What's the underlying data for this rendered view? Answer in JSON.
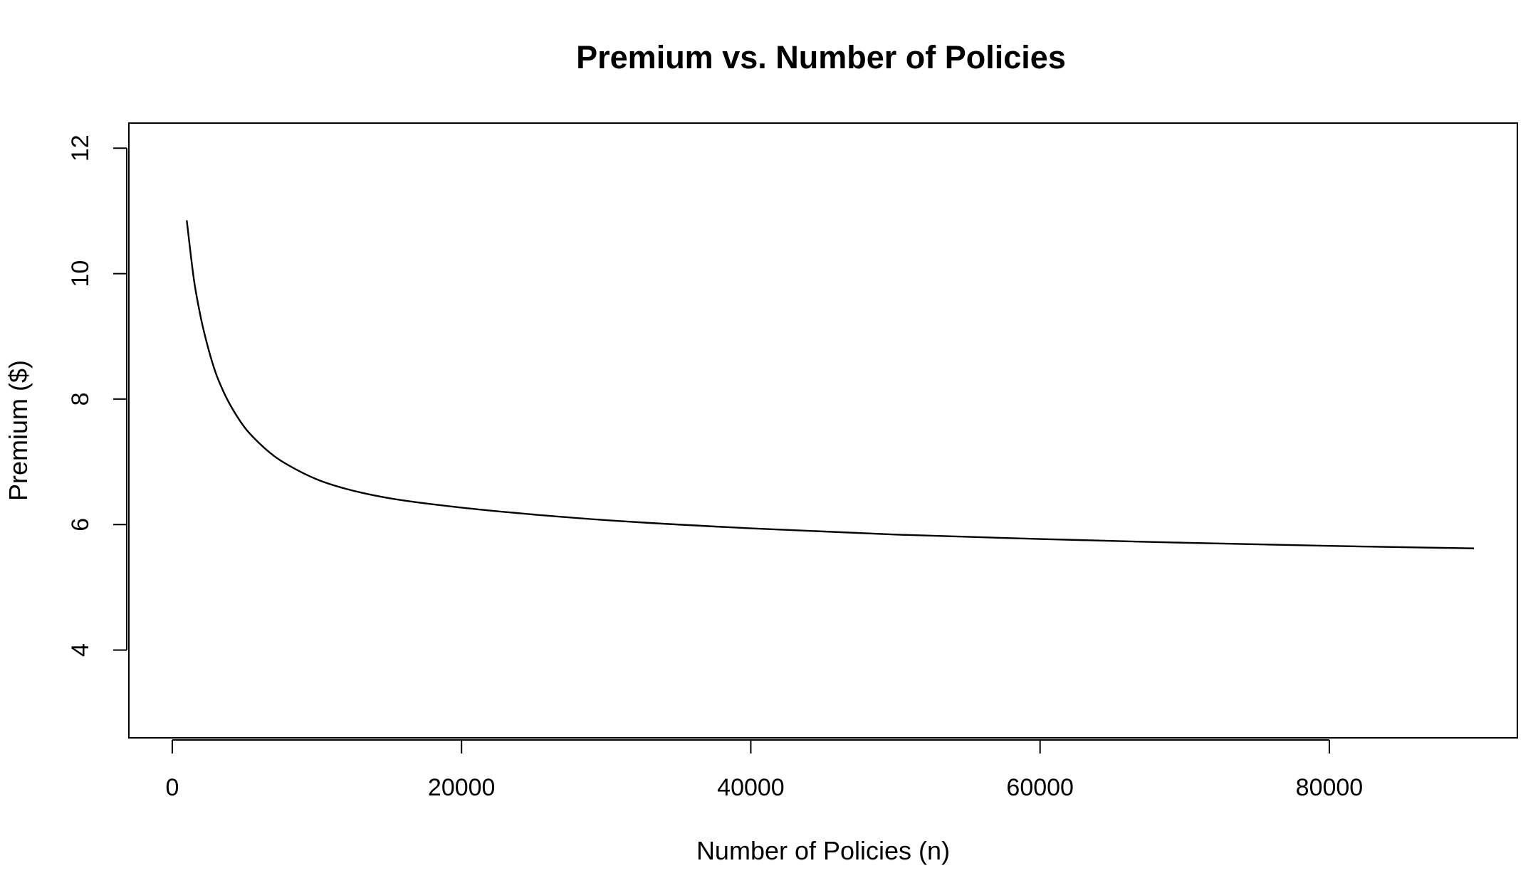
{
  "chart_data": {
    "type": "line",
    "title": "Premium vs. Number of Policies",
    "xlabel": "Number of Policies (n)",
    "ylabel": "Premium ($)",
    "xlim": [
      -3000,
      93000
    ],
    "ylim": [
      2.6,
      12.4
    ],
    "x_ticks": [
      0,
      20000,
      40000,
      60000,
      80000
    ],
    "x_tick_labels": [
      "0",
      "20000",
      "40000",
      "60000",
      "80000"
    ],
    "y_ticks": [
      4,
      6,
      8,
      10,
      12
    ],
    "y_tick_labels": [
      "4",
      "6",
      "8",
      "10",
      "12"
    ],
    "grid": false,
    "legend": "none",
    "line_color": "#000000",
    "series": [
      {
        "x": [
          1000,
          1500,
          2000,
          2500,
          3000,
          3500,
          4000,
          5000,
          6000,
          7000,
          8000,
          10000,
          12000,
          15000,
          20000,
          25000,
          30000,
          40000,
          50000,
          60000,
          70000,
          80000,
          90000
        ],
        "values": [
          10.85,
          9.9,
          9.27,
          8.8,
          8.42,
          8.14,
          7.91,
          7.55,
          7.3,
          7.1,
          6.95,
          6.72,
          6.57,
          6.42,
          6.27,
          6.16,
          6.07,
          5.94,
          5.84,
          5.77,
          5.71,
          5.66,
          5.62
        ]
      }
    ]
  }
}
